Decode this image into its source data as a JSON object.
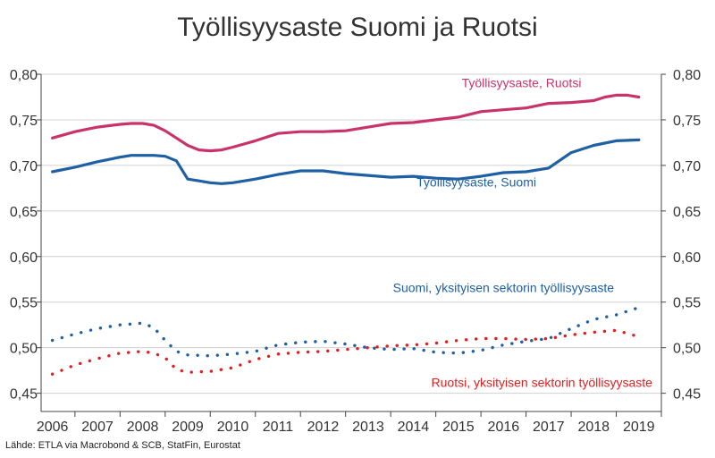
{
  "title": "Työllisyysaste Suomi ja Ruotsi",
  "source": "Lähde: ETLA via Macrobond & SCB, StatFin, Eurostat",
  "colors": {
    "ruotsi": "#c8336b",
    "suomi": "#1f5fa3",
    "suomi_private": "#1f5fa3",
    "ruotsi_private": "#e02020",
    "grid": "#d0d0d0",
    "axis": "#444444"
  },
  "chart_data": {
    "type": "line",
    "title": "Työllisyysaste Suomi ja Ruotsi",
    "xlabel": "",
    "ylabel": "",
    "ylim": [
      0.43,
      0.8
    ],
    "y_ticks": [
      "0,45",
      "0,50",
      "0,55",
      "0,60",
      "0,65",
      "0,70",
      "0,75",
      "0,80"
    ],
    "x_ticks": [
      "2006",
      "2007",
      "2008",
      "2009",
      "2010",
      "2011",
      "2012",
      "2013",
      "2014",
      "2015",
      "2016",
      "2017",
      "2018",
      "2019"
    ],
    "xlim": [
      2005.75,
      2019.5
    ],
    "grid": true,
    "series": [
      {
        "name": "Työllisyysaste, Ruotsi",
        "style": "solid",
        "color_key": "ruotsi",
        "x": [
          2006.0,
          2006.5,
          2007.0,
          2007.5,
          2007.75,
          2008.0,
          2008.25,
          2008.5,
          2008.75,
          2009.0,
          2009.25,
          2009.5,
          2009.75,
          2010.0,
          2010.5,
          2011.0,
          2011.5,
          2012.0,
          2012.5,
          2013.0,
          2013.5,
          2014.0,
          2014.5,
          2015.0,
          2015.5,
          2016.0,
          2016.5,
          2017.0,
          2017.5,
          2018.0,
          2018.25,
          2018.5,
          2018.75,
          2019.0
        ],
        "y": [
          0.73,
          0.737,
          0.742,
          0.745,
          0.746,
          0.746,
          0.744,
          0.738,
          0.73,
          0.722,
          0.717,
          0.716,
          0.717,
          0.72,
          0.727,
          0.735,
          0.737,
          0.737,
          0.738,
          0.742,
          0.746,
          0.747,
          0.75,
          0.753,
          0.759,
          0.761,
          0.763,
          0.768,
          0.769,
          0.771,
          0.775,
          0.777,
          0.777,
          0.775
        ]
      },
      {
        "name": "Työllisyysaste, Suomi",
        "style": "solid",
        "color_key": "suomi",
        "x": [
          2006.0,
          2006.5,
          2007.0,
          2007.5,
          2007.75,
          2008.0,
          2008.25,
          2008.5,
          2008.75,
          2009.0,
          2009.25,
          2009.5,
          2009.75,
          2010.0,
          2010.5,
          2011.0,
          2011.5,
          2012.0,
          2012.5,
          2013.0,
          2013.5,
          2014.0,
          2014.5,
          2015.0,
          2015.5,
          2016.0,
          2016.5,
          2017.0,
          2017.5,
          2018.0,
          2018.5,
          2019.0
        ],
        "y": [
          0.693,
          0.698,
          0.704,
          0.709,
          0.711,
          0.711,
          0.711,
          0.71,
          0.705,
          0.685,
          0.683,
          0.681,
          0.68,
          0.681,
          0.685,
          0.69,
          0.694,
          0.694,
          0.691,
          0.689,
          0.687,
          0.688,
          0.686,
          0.685,
          0.688,
          0.692,
          0.693,
          0.697,
          0.714,
          0.722,
          0.727,
          0.728
        ]
      },
      {
        "name": "Suomi, yksityisen sektorin työllisyysaste",
        "style": "dotted",
        "color_key": "suomi_private",
        "x": [
          2006.0,
          2006.5,
          2007.0,
          2007.5,
          2008.0,
          2008.25,
          2008.5,
          2008.75,
          2009.0,
          2009.5,
          2010.0,
          2010.5,
          2011.0,
          2011.5,
          2012.0,
          2012.5,
          2013.0,
          2013.5,
          2014.0,
          2014.5,
          2015.0,
          2015.5,
          2016.0,
          2016.5,
          2017.0,
          2017.5,
          2018.0,
          2018.5,
          2019.0
        ],
        "y": [
          0.508,
          0.515,
          0.521,
          0.525,
          0.527,
          0.522,
          0.508,
          0.496,
          0.492,
          0.491,
          0.493,
          0.496,
          0.503,
          0.506,
          0.507,
          0.504,
          0.5,
          0.498,
          0.499,
          0.495,
          0.494,
          0.497,
          0.503,
          0.507,
          0.51,
          0.521,
          0.531,
          0.536,
          0.544
        ]
      },
      {
        "name": "Ruotsi, yksityisen sektorin työllisyysaste",
        "style": "dotted",
        "color_key": "ruotsi_private",
        "x": [
          2006.0,
          2006.5,
          2007.0,
          2007.5,
          2008.0,
          2008.25,
          2008.5,
          2008.75,
          2009.0,
          2009.5,
          2010.0,
          2010.5,
          2011.0,
          2011.5,
          2012.0,
          2012.5,
          2013.0,
          2013.5,
          2014.0,
          2014.5,
          2015.0,
          2015.5,
          2016.0,
          2016.5,
          2017.0,
          2017.5,
          2018.0,
          2018.5,
          2019.0
        ],
        "y": [
          0.471,
          0.481,
          0.488,
          0.494,
          0.496,
          0.494,
          0.489,
          0.476,
          0.473,
          0.474,
          0.478,
          0.487,
          0.493,
          0.495,
          0.496,
          0.498,
          0.5,
          0.502,
          0.503,
          0.505,
          0.508,
          0.51,
          0.51,
          0.509,
          0.51,
          0.514,
          0.517,
          0.519,
          0.512
        ]
      }
    ],
    "annotations": [
      {
        "text": "Työllisyysaste, Ruotsi",
        "color_key": "ruotsi",
        "x": 2016.4,
        "y": 0.786
      },
      {
        "text": "Työllisyysaste, Suomi",
        "color_key": "suomi",
        "x": 2015.4,
        "y": 0.677
      },
      {
        "text": "Suomi, yksityisen sektorin työllisyysaste",
        "color_key": "suomi_private",
        "x": 2016.0,
        "y": 0.561
      },
      {
        "text": "Ruotsi, yksityisen sektorin työllisyysaste",
        "color_key": "ruotsi_private",
        "x": 2016.85,
        "y": 0.457
      }
    ]
  }
}
